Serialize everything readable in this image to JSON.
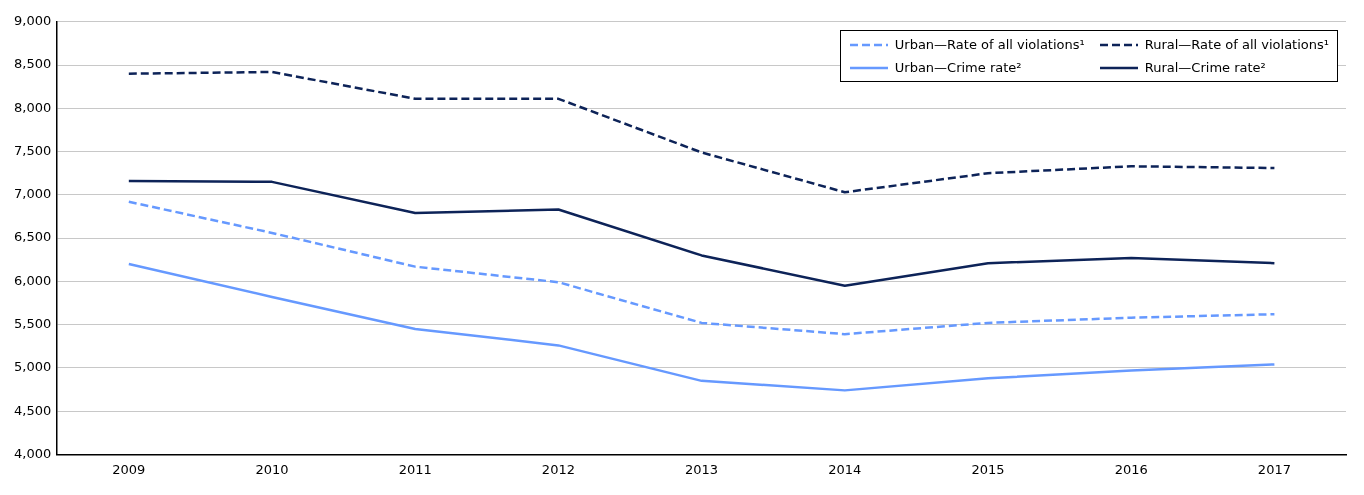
{
  "chart_data": {
    "type": "line",
    "categories": [
      "2009",
      "2010",
      "2011",
      "2012",
      "2013",
      "2014",
      "2015",
      "2016",
      "2017"
    ],
    "series": [
      {
        "name": "Urban—Rate of all violations¹",
        "color": "#6699ff",
        "line_style": "dashed",
        "values": [
          6920,
          6560,
          6170,
          5990,
          5520,
          5390,
          5520,
          5580,
          5620
        ]
      },
      {
        "name": "Rural—Rate of all violations¹",
        "color": "#0d2358",
        "line_style": "dashed",
        "values": [
          8400,
          8420,
          8110,
          8110,
          7490,
          7030,
          7250,
          7330,
          7310
        ]
      },
      {
        "name": "Urban—Crime rate²",
        "color": "#6699ff",
        "line_style": "solid",
        "values": [
          6200,
          5820,
          5450,
          5260,
          4850,
          4740,
          4880,
          4970,
          5040
        ]
      },
      {
        "name": "Rural—Crime rate²",
        "color": "#0d2358",
        "line_style": "solid",
        "values": [
          7160,
          7150,
          6790,
          6830,
          6300,
          5950,
          6210,
          6270,
          6210
        ]
      }
    ],
    "ylim": [
      4000,
      9000
    ],
    "yticks": [
      {
        "value": 4000,
        "label": "4,000"
      },
      {
        "value": 4500,
        "label": "4,500"
      },
      {
        "value": 5000,
        "label": "5,000"
      },
      {
        "value": 5500,
        "label": "5,500"
      },
      {
        "value": 6000,
        "label": "6,000"
      },
      {
        "value": 6500,
        "label": "6,500"
      },
      {
        "value": 7000,
        "label": "7,000"
      },
      {
        "value": 7500,
        "label": "7,500"
      },
      {
        "value": 8000,
        "label": "8,000"
      },
      {
        "value": 8500,
        "label": "8,500"
      },
      {
        "value": 9000,
        "label": "9,000"
      }
    ],
    "grid": "y",
    "legend": "top right",
    "marker": "none"
  }
}
